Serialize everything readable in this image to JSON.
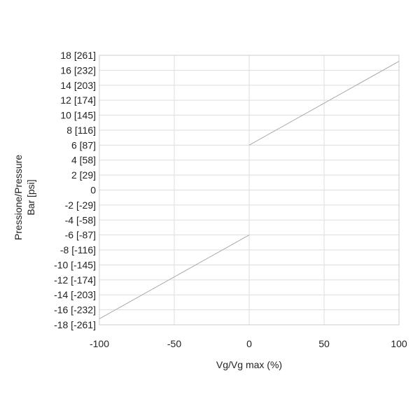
{
  "chart_data": {
    "type": "line",
    "title": "",
    "xlabel": "Vg/Vg max (%)",
    "ylabel_lines": [
      "Pressione/Pressure",
      "Bar [psi]"
    ],
    "xlim": [
      -100,
      100
    ],
    "ylim": [
      -18,
      18
    ],
    "x_ticks": [
      {
        "value": -100,
        "label": "-100"
      },
      {
        "value": -50,
        "label": "-50"
      },
      {
        "value": 0,
        "label": "0"
      },
      {
        "value": 50,
        "label": "50"
      },
      {
        "value": 100,
        "label": "100"
      }
    ],
    "y_ticks": [
      {
        "value": 18,
        "label": "18 [261]"
      },
      {
        "value": 16,
        "label": "16 [232]"
      },
      {
        "value": 14,
        "label": "14 [203]"
      },
      {
        "value": 12,
        "label": "12 [174]"
      },
      {
        "value": 10,
        "label": "10 [145]"
      },
      {
        "value": 8,
        "label": "8 [116]"
      },
      {
        "value": 6,
        "label": "6 [87]"
      },
      {
        "value": 4,
        "label": "4 [58]"
      },
      {
        "value": 2,
        "label": "2 [29]"
      },
      {
        "value": 0,
        "label": "0"
      },
      {
        "value": -2,
        "label": "-2 [-29]"
      },
      {
        "value": -4,
        "label": "-4 [-58]"
      },
      {
        "value": -6,
        "label": "-6 [-87]"
      },
      {
        "value": -8,
        "label": "-8 [-116]"
      },
      {
        "value": -10,
        "label": "-10 [-145]"
      },
      {
        "value": -12,
        "label": "-12 [-174]"
      },
      {
        "value": -14,
        "label": "-14 [-203]"
      },
      {
        "value": -16,
        "label": "-16 [-232]"
      },
      {
        "value": -18,
        "label": "-18 [-261]"
      }
    ],
    "grid": true,
    "series": [
      {
        "segment": "negative",
        "x": [
          -100,
          0
        ],
        "y": [
          -17.2,
          -6
        ]
      },
      {
        "segment": "positive",
        "x": [
          0,
          100
        ],
        "y": [
          6,
          17.2
        ]
      }
    ],
    "line_color": "#aaaaaa",
    "grid_color": "#dddddd",
    "frame_color": "#cccccc"
  }
}
